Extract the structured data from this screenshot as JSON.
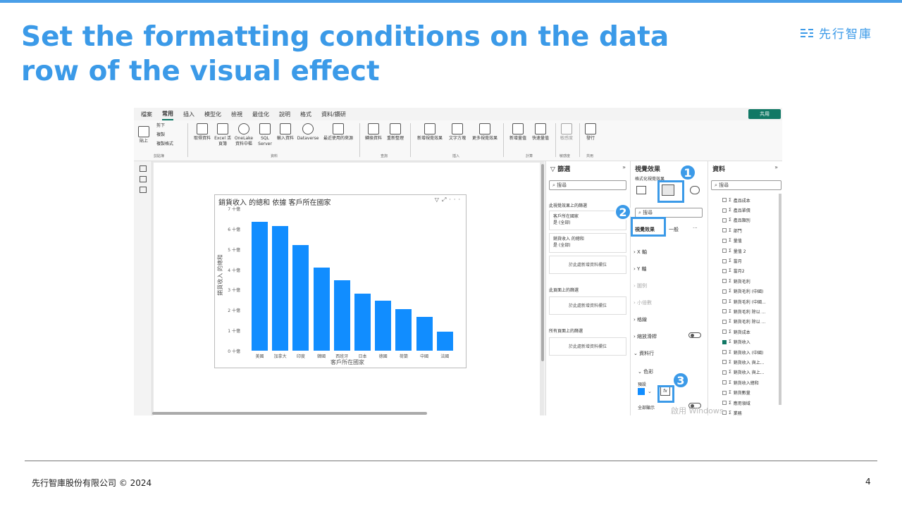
{
  "slide": {
    "title": "Set the formatting conditions on the data row of the visual effect",
    "logo_text": "先行智庫",
    "footer": "先行智庫股份有限公司 © 2024",
    "page_number": "4"
  },
  "ribbon": {
    "tabs": [
      "檔案",
      "常用",
      "插入",
      "模型化",
      "檢視",
      "最佳化",
      "說明",
      "格式",
      "資料/鑽研"
    ],
    "active_tab": "常用",
    "share_label": "共用",
    "buttons": {
      "paste": "貼上",
      "cut": "剪下",
      "copy": "複製",
      "format_painter": "複製格式",
      "get_data": "取得資料",
      "excel": "Excel 活頁簿",
      "onelake": "OneLake 資料中樞",
      "sql": "SQL Server",
      "enter_data": "輸入資料",
      "dataverse": "Dataverse",
      "recent": "最近使用的來源",
      "transform": "轉換資料",
      "refresh": "重新整理",
      "new_visual": "新增視覺效果",
      "textbox": "文字方塊",
      "more_visuals": "更多視覺效果",
      "new_measure": "新增量值",
      "quick_measure": "快速量值",
      "sensitivity": "敏感度",
      "publish": "發行"
    },
    "groups": [
      "剪貼簿",
      "資料",
      "查詢",
      "插入",
      "計算",
      "敏感度",
      "共用"
    ]
  },
  "visual": {
    "title": "銷貨收入 的總和 依據 客戶所在國家",
    "icons": [
      "filter-icon",
      "focus-icon",
      "more-icon"
    ]
  },
  "chart_data": {
    "type": "bar",
    "title": "銷貨收入 的總和 依據 客戶所在國家",
    "xlabel": "客戶所在國家",
    "ylabel": "銷貨收入 的總和",
    "categories": [
      "美國",
      "加拿大",
      "印度",
      "韓國",
      "西班牙",
      "日本",
      "德國",
      "荷蘭",
      "中國",
      "法國"
    ],
    "values": [
      6.35,
      6.15,
      5.2,
      4.1,
      3.45,
      2.8,
      2.45,
      2.05,
      1.65,
      0.95
    ],
    "ylim": [
      0,
      7
    ],
    "yticks": [
      "0 十億",
      "1 十億",
      "2 十億",
      "3 十億",
      "4 十億",
      "5 十億",
      "6 十億",
      "7 十億"
    ],
    "bar_color": "#118DFF"
  },
  "filters": {
    "title": "篩選",
    "search_placeholder": "搜尋",
    "section_visual": "此視覺效果上的篩選",
    "card1_line1": "客戶所在國家",
    "card1_line2": "是 (全部)",
    "card2_line1": "銷貨收入 的總和",
    "card2_line2": "是 (全部)",
    "add_field": "於此處新增資料欄位",
    "section_page": "此頁面上的篩選",
    "section_all": "所有頁面上的篩選"
  },
  "format": {
    "title": "視覺效果",
    "subtitle": "格式化視覺效果",
    "search_placeholder": "搜尋",
    "tab_visual": "視覺效果",
    "tab_general": "一般",
    "sections": [
      "X 軸",
      "Y 軸",
      "圖例",
      "小倍數",
      "格線",
      "縮放滑桿",
      "資料行"
    ],
    "colors": "色彩",
    "default": "預設",
    "show_all": "全部顯示",
    "fx": "fx"
  },
  "data_pane": {
    "title": "資料",
    "search_placeholder": "搜尋",
    "fields": [
      {
        "name": "產品成本",
        "checked": false
      },
      {
        "name": "產品單價",
        "checked": false
      },
      {
        "name": "產品類別",
        "checked": false
      },
      {
        "name": "部門",
        "checked": false
      },
      {
        "name": "量值",
        "checked": false
      },
      {
        "name": "量值 2",
        "checked": false
      },
      {
        "name": "當月",
        "checked": false
      },
      {
        "name": "當月2",
        "checked": false
      },
      {
        "name": "銷貨毛利",
        "checked": false
      },
      {
        "name": "銷貨毛利 (中國)",
        "checked": false
      },
      {
        "name": "銷貨毛利 (中國...",
        "checked": false
      },
      {
        "name": "銷貨毛利 除以 ...",
        "checked": false
      },
      {
        "name": "銷貨毛利 除以 ...",
        "checked": false
      },
      {
        "name": "銷貨成本",
        "checked": false
      },
      {
        "name": "銷貨收入",
        "checked": true
      },
      {
        "name": "銷貨收入 (中國)",
        "checked": false
      },
      {
        "name": "銷貨收入 與上...",
        "checked": false
      },
      {
        "name": "銷貨收入 與上...",
        "checked": false
      },
      {
        "name": "銷貨收入總和",
        "checked": false
      },
      {
        "name": "銷貨數量",
        "checked": false
      },
      {
        "name": "應用領域",
        "checked": false
      },
      {
        "name": "業務",
        "checked": false
      }
    ]
  },
  "callouts": [
    "1",
    "2",
    "3"
  ],
  "watermark": "啟用 Windows"
}
